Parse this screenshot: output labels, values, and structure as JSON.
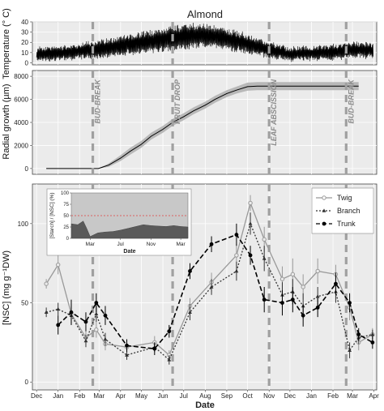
{
  "chart_data": [
    {
      "type": "line",
      "title": "Almond",
      "ylabel": "Temperature (° C)",
      "ylim": [
        -2,
        40
      ],
      "yticks": [
        0,
        10,
        20,
        30,
        40
      ],
      "xlim": [
        "2012-11-25",
        "2014-04-05"
      ],
      "series": [
        {
          "x": [
            "2012-12-01",
            "2013-01-01",
            "2013-02-01",
            "2013-03-01",
            "2013-04-01",
            "2013-05-01",
            "2013-06-01",
            "2013-07-01",
            "2013-08-01",
            "2013-09-01",
            "2013-10-01",
            "2013-11-01",
            "2013-12-01",
            "2014-01-01",
            "2014-02-01",
            "2014-03-01",
            "2014-04-01"
          ],
          "mean": [
            8,
            9,
            11,
            13,
            16,
            19,
            22,
            25,
            26,
            23,
            18,
            12,
            8,
            9,
            10,
            12,
            12
          ],
          "amplitude": [
            7,
            7,
            8,
            9,
            10,
            11,
            12,
            13,
            12,
            11,
            10,
            8,
            7,
            7,
            8,
            8,
            8
          ]
        }
      ],
      "grid": true
    },
    {
      "type": "area",
      "ylabel": "Radial growth (µm)",
      "ylim": [
        -500,
        8500
      ],
      "yticks": [
        0,
        2000,
        4000,
        6000,
        8000
      ],
      "xlim": [
        "2012-11-25",
        "2014-04-05"
      ],
      "series": [
        {
          "x": [
            "2012-12-15",
            "2013-02-28",
            "2013-03-15",
            "2013-04-01",
            "2013-04-15",
            "2013-05-01",
            "2013-05-15",
            "2013-06-01",
            "2013-06-15",
            "2013-07-01",
            "2013-07-15",
            "2013-08-01",
            "2013-08-15",
            "2013-09-01",
            "2013-09-15",
            "2013-10-01",
            "2013-10-15",
            "2014-03-10"
          ],
          "y": [
            0,
            0,
            300,
            900,
            1500,
            2100,
            2800,
            3400,
            4000,
            4500,
            5000,
            5500,
            6000,
            6500,
            6800,
            7100,
            7150,
            7150
          ],
          "band": [
            0,
            0,
            150,
            250,
            300,
            300,
            300,
            300,
            300,
            300,
            300,
            300,
            300,
            300,
            300,
            350,
            350,
            350
          ]
        }
      ],
      "events": [
        {
          "label": "BUD-BREAK",
          "x": "2013-02-20"
        },
        {
          "label": "FRUIT DROP",
          "x": "2013-06-15"
        },
        {
          "label": "LEAF ABSCISSION",
          "x": "2013-11-01"
        },
        {
          "label": "BUD-BREAK",
          "x": "2014-02-20"
        }
      ],
      "grid": true
    },
    {
      "type": "line",
      "ylabel": "[NSC] (mg g⁻¹DW)",
      "xlabel": "Date",
      "ylim": [
        -5,
        125
      ],
      "yticks": [
        0,
        50,
        100
      ],
      "xlim": [
        "2012-11-25",
        "2014-04-05"
      ],
      "x_tick_labels": [
        "Dec",
        "Jan",
        "Feb",
        "Mar",
        "Apr",
        "May",
        "Jun",
        "Jul",
        "Aug",
        "Sep",
        "Oct",
        "Nov",
        "Dec",
        "Jan",
        "Feb",
        "Mar",
        "Apr"
      ],
      "legend": {
        "position": "top-right"
      },
      "series": [
        {
          "name": "Twig",
          "color": "#999999",
          "style": "solid",
          "marker": "circle-open",
          "x": [
            "2012-12-15",
            "2013-01-01",
            "2013-01-20",
            "2013-02-10",
            "2013-02-25",
            "2013-03-10",
            "2013-04-10",
            "2013-05-20",
            "2013-06-10",
            "2013-07-10",
            "2013-08-10",
            "2013-09-15",
            "2013-10-05",
            "2013-10-25",
            "2013-11-20",
            "2013-12-05",
            "2013-12-20",
            "2014-01-10",
            "2014-02-05",
            "2014-02-25",
            "2014-03-10",
            "2014-03-30"
          ],
          "y": [
            62,
            74,
            43,
            28,
            33,
            24,
            22,
            25,
            17,
            48,
            63,
            80,
            113,
            90,
            65,
            68,
            60,
            70,
            68,
            47,
            25,
            30
          ],
          "err": [
            3,
            6,
            6,
            4,
            5,
            4,
            3,
            4,
            3,
            5,
            6,
            7,
            5,
            8,
            8,
            10,
            8,
            8,
            6,
            8,
            5,
            4
          ]
        },
        {
          "name": "Branch",
          "color": "#333333",
          "style": "dotted",
          "marker": "triangle",
          "x": [
            "2012-12-15",
            "2013-01-01",
            "2013-01-20",
            "2013-02-10",
            "2013-02-25",
            "2013-03-10",
            "2013-04-10",
            "2013-05-20",
            "2013-06-10",
            "2013-07-10",
            "2013-08-10",
            "2013-09-15",
            "2013-10-05",
            "2013-10-25",
            "2013-11-20",
            "2013-12-05",
            "2013-12-20",
            "2014-01-10",
            "2014-02-05",
            "2014-02-25",
            "2014-03-10",
            "2014-03-30"
          ],
          "y": [
            44,
            46,
            42,
            26,
            43,
            27,
            17,
            22,
            14,
            44,
            60,
            70,
            100,
            78,
            55,
            57,
            48,
            54,
            57,
            20,
            28,
            30
          ],
          "err": [
            3,
            4,
            6,
            4,
            5,
            4,
            3,
            3,
            3,
            5,
            5,
            6,
            7,
            8,
            8,
            8,
            8,
            6,
            7,
            5,
            4,
            3
          ]
        },
        {
          "name": "Trunk",
          "color": "#000000",
          "style": "dashed",
          "marker": "circle-filled",
          "x": [
            "2012-12-15",
            "2013-01-01",
            "2013-01-20",
            "2013-02-10",
            "2013-02-25",
            "2013-03-10",
            "2013-04-10",
            "2013-05-20",
            "2013-06-10",
            "2013-07-10",
            "2013-08-10",
            "2013-09-15",
            "2013-10-05",
            "2013-10-25",
            "2013-11-20",
            "2013-12-05",
            "2013-12-20",
            "2014-01-10",
            "2014-02-05",
            "2014-02-25",
            "2014-03-10",
            "2014-03-30"
          ],
          "y": [
            null,
            36,
            44,
            38,
            50,
            42,
            23,
            21,
            32,
            70,
            87,
            93,
            80,
            52,
            50,
            52,
            42,
            47,
            62,
            50,
            30,
            25
          ],
          "err": [
            0,
            6,
            8,
            6,
            6,
            6,
            4,
            4,
            4,
            5,
            5,
            7,
            6,
            8,
            8,
            8,
            7,
            6,
            7,
            6,
            4,
            4
          ]
        }
      ],
      "events_x": [
        "2013-02-20",
        "2013-06-15",
        "2013-11-01",
        "2014-02-20"
      ],
      "grid": true
    },
    {
      "type": "area",
      "ylabel": "[Starch] / [NSC] (%)",
      "xlabel": "Date",
      "ylim": [
        0,
        100
      ],
      "yticks": [
        0,
        25,
        50,
        75,
        100
      ],
      "x_tick_labels": [
        "Mar",
        "Jul",
        "Nov",
        "Mar"
      ],
      "x_tick_dates": [
        "2013-03-01",
        "2013-07-01",
        "2013-11-01",
        "2014-03-01"
      ],
      "xlim": [
        "2012-12-15",
        "2014-03-30"
      ],
      "reference_line": 50,
      "series": [
        {
          "x": [
            "2012-12-15",
            "2013-01-10",
            "2013-02-01",
            "2013-02-15",
            "2013-03-01",
            "2013-04-01",
            "2013-05-01",
            "2013-06-01",
            "2013-07-01",
            "2013-08-01",
            "2013-09-01",
            "2013-10-01",
            "2013-11-01",
            "2013-12-01",
            "2014-01-01",
            "2014-02-01",
            "2014-03-01",
            "2014-03-30"
          ],
          "y": [
            32,
            30,
            38,
            22,
            4,
            12,
            14,
            15,
            18,
            22,
            26,
            30,
            28,
            27,
            26,
            28,
            26,
            25
          ]
        }
      ]
    }
  ]
}
